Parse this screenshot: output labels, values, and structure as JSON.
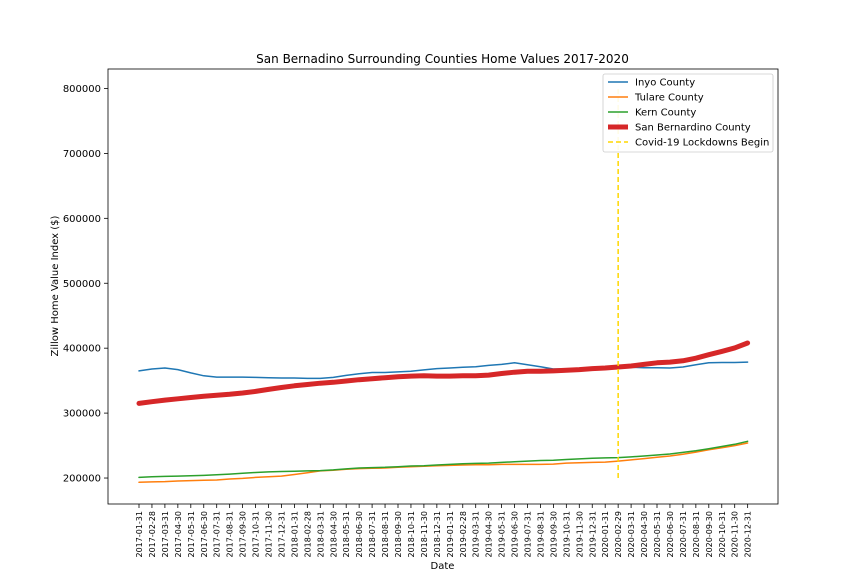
{
  "chart_data": {
    "type": "line",
    "title": "San Bernadino Surrounding Counties Home Values 2017-2020",
    "xlabel": "Date",
    "ylabel": "Zillow Home Value Index ($)",
    "ylim": [
      160000,
      830000
    ],
    "yticks": [
      200000,
      300000,
      400000,
      500000,
      600000,
      700000,
      800000
    ],
    "ytick_labels": [
      "200000",
      "300000",
      "400000",
      "500000",
      "600000",
      "700000",
      "800000"
    ],
    "grid": false,
    "legend_position": "top-right",
    "x": [
      "2017-01-31",
      "2017-02-28",
      "2017-03-31",
      "2017-04-30",
      "2017-05-31",
      "2017-06-30",
      "2017-07-31",
      "2017-08-31",
      "2017-09-30",
      "2017-10-31",
      "2017-11-30",
      "2017-12-31",
      "2018-01-31",
      "2018-02-28",
      "2018-03-31",
      "2018-04-30",
      "2018-05-31",
      "2018-06-30",
      "2018-07-31",
      "2018-08-31",
      "2018-09-30",
      "2018-10-31",
      "2018-11-30",
      "2018-12-31",
      "2019-01-31",
      "2019-02-28",
      "2019-03-31",
      "2019-04-30",
      "2019-05-31",
      "2019-06-30",
      "2019-07-31",
      "2019-08-31",
      "2019-09-30",
      "2019-10-31",
      "2019-11-30",
      "2019-12-31",
      "2020-01-31",
      "2020-02-29",
      "2020-03-31",
      "2020-04-30",
      "2020-05-31",
      "2020-06-30",
      "2020-07-31",
      "2020-08-31",
      "2020-09-30",
      "2020-10-31",
      "2020-11-30",
      "2020-12-31"
    ],
    "series": [
      {
        "name": "Inyo County",
        "color": "#1f77b4",
        "line_style": "solid",
        "values": [
          365000,
          368000,
          369500,
          367000,
          362000,
          357500,
          355500,
          355500,
          355500,
          355000,
          354500,
          354000,
          354000,
          353500,
          353500,
          355000,
          358000,
          360500,
          362500,
          362500,
          363500,
          364500,
          366500,
          368500,
          369500,
          370500,
          371500,
          373500,
          375000,
          377500,
          374500,
          371500,
          368000,
          368000,
          369000,
          369500,
          370000,
          370500,
          370500,
          370000,
          370000,
          369500,
          371000,
          374500,
          377500,
          378000,
          378000,
          378500
        ]
      },
      {
        "name": "Tulare County",
        "color": "#ff7f0e",
        "line_style": "solid",
        "values": [
          193500,
          194000,
          194500,
          195500,
          196000,
          196500,
          197000,
          198500,
          199500,
          201000,
          202000,
          203000,
          205500,
          208000,
          211000,
          212000,
          213500,
          214500,
          215000,
          215500,
          216500,
          217500,
          218000,
          219000,
          219500,
          220000,
          220500,
          220500,
          221000,
          221000,
          221000,
          221000,
          221500,
          223000,
          223500,
          224000,
          224500,
          226000,
          228000,
          230000,
          232000,
          234000,
          236500,
          240000,
          243500,
          246500,
          250000,
          254000
        ]
      },
      {
        "name": "Kern County",
        "color": "#2ca02c",
        "line_style": "solid",
        "values": [
          201000,
          202000,
          202500,
          203000,
          203500,
          204000,
          205000,
          206000,
          207500,
          208500,
          209500,
          210000,
          210500,
          211000,
          211500,
          212500,
          214000,
          215500,
          216000,
          216500,
          217500,
          218500,
          219000,
          220000,
          221000,
          222000,
          222500,
          223000,
          224000,
          225000,
          226000,
          227000,
          227500,
          228500,
          229500,
          230500,
          231000,
          231500,
          232500,
          234000,
          235500,
          237000,
          239500,
          242000,
          245000,
          248500,
          252000,
          256500
        ]
      },
      {
        "name": "San Bernardino County",
        "color": "#d62728",
        "line_style": "solid",
        "line_width": "thick",
        "values": [
          315000,
          317500,
          320000,
          322000,
          324000,
          326000,
          327500,
          329000,
          331000,
          333500,
          336500,
          339500,
          342000,
          344000,
          346000,
          347500,
          349500,
          351500,
          353000,
          354500,
          356000,
          357000,
          357500,
          357000,
          357000,
          357500,
          357500,
          358500,
          361000,
          363000,
          364500,
          364500,
          365000,
          366000,
          367000,
          368500,
          369500,
          371000,
          372500,
          375000,
          377500,
          378500,
          380500,
          384500,
          390000,
          395000,
          400500,
          408000
        ]
      }
    ],
    "annotations": [
      {
        "name": "Covid-19 Lockdowns Begin",
        "type": "vline",
        "x": "2020-02-29",
        "y_range": [
          200000,
          800000
        ],
        "color": "#ffd700",
        "line_style": "dashed"
      }
    ]
  }
}
